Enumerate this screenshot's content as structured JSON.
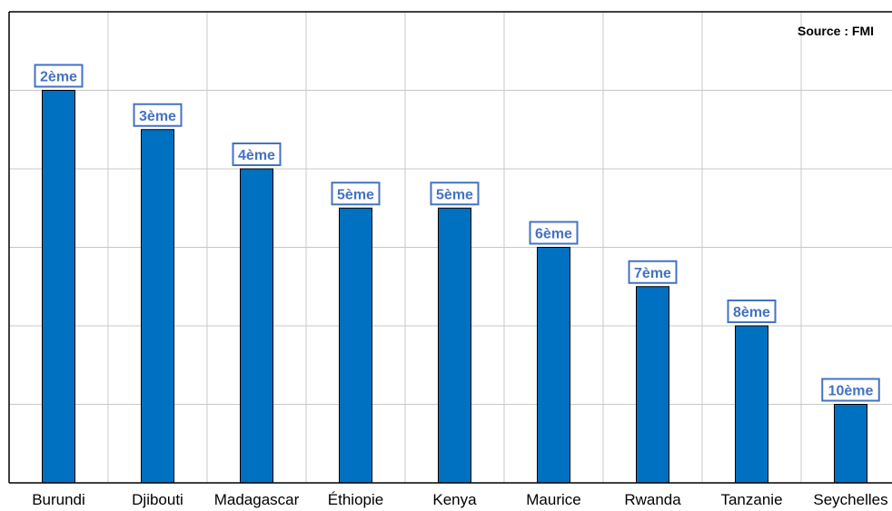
{
  "chart_data": {
    "type": "bar",
    "source": "Source : FMI",
    "categories": [
      "Burundi",
      "Djibouti",
      "Madagascar",
      "Éthiopie",
      "Kenya",
      "Maurice",
      "Rwanda",
      "Tanzanie",
      "Seychelles"
    ],
    "values": [
      10,
      9,
      8,
      7,
      7,
      6,
      5,
      4,
      2
    ],
    "data_labels": [
      "2ème",
      "3ème",
      "4ème",
      "5ème",
      "5ème",
      "6ème",
      "7ème",
      "8ème",
      "10ème"
    ],
    "ylim": [
      0,
      12
    ],
    "grid": true,
    "y_tick_labels_shown": false,
    "colors": {
      "bar_fill": "#0070C0",
      "bar_stroke": "#000000",
      "label_text": "#4472C4",
      "label_border": "#4472C4",
      "grid": "#C8C8C8",
      "axis": "#000000"
    }
  }
}
